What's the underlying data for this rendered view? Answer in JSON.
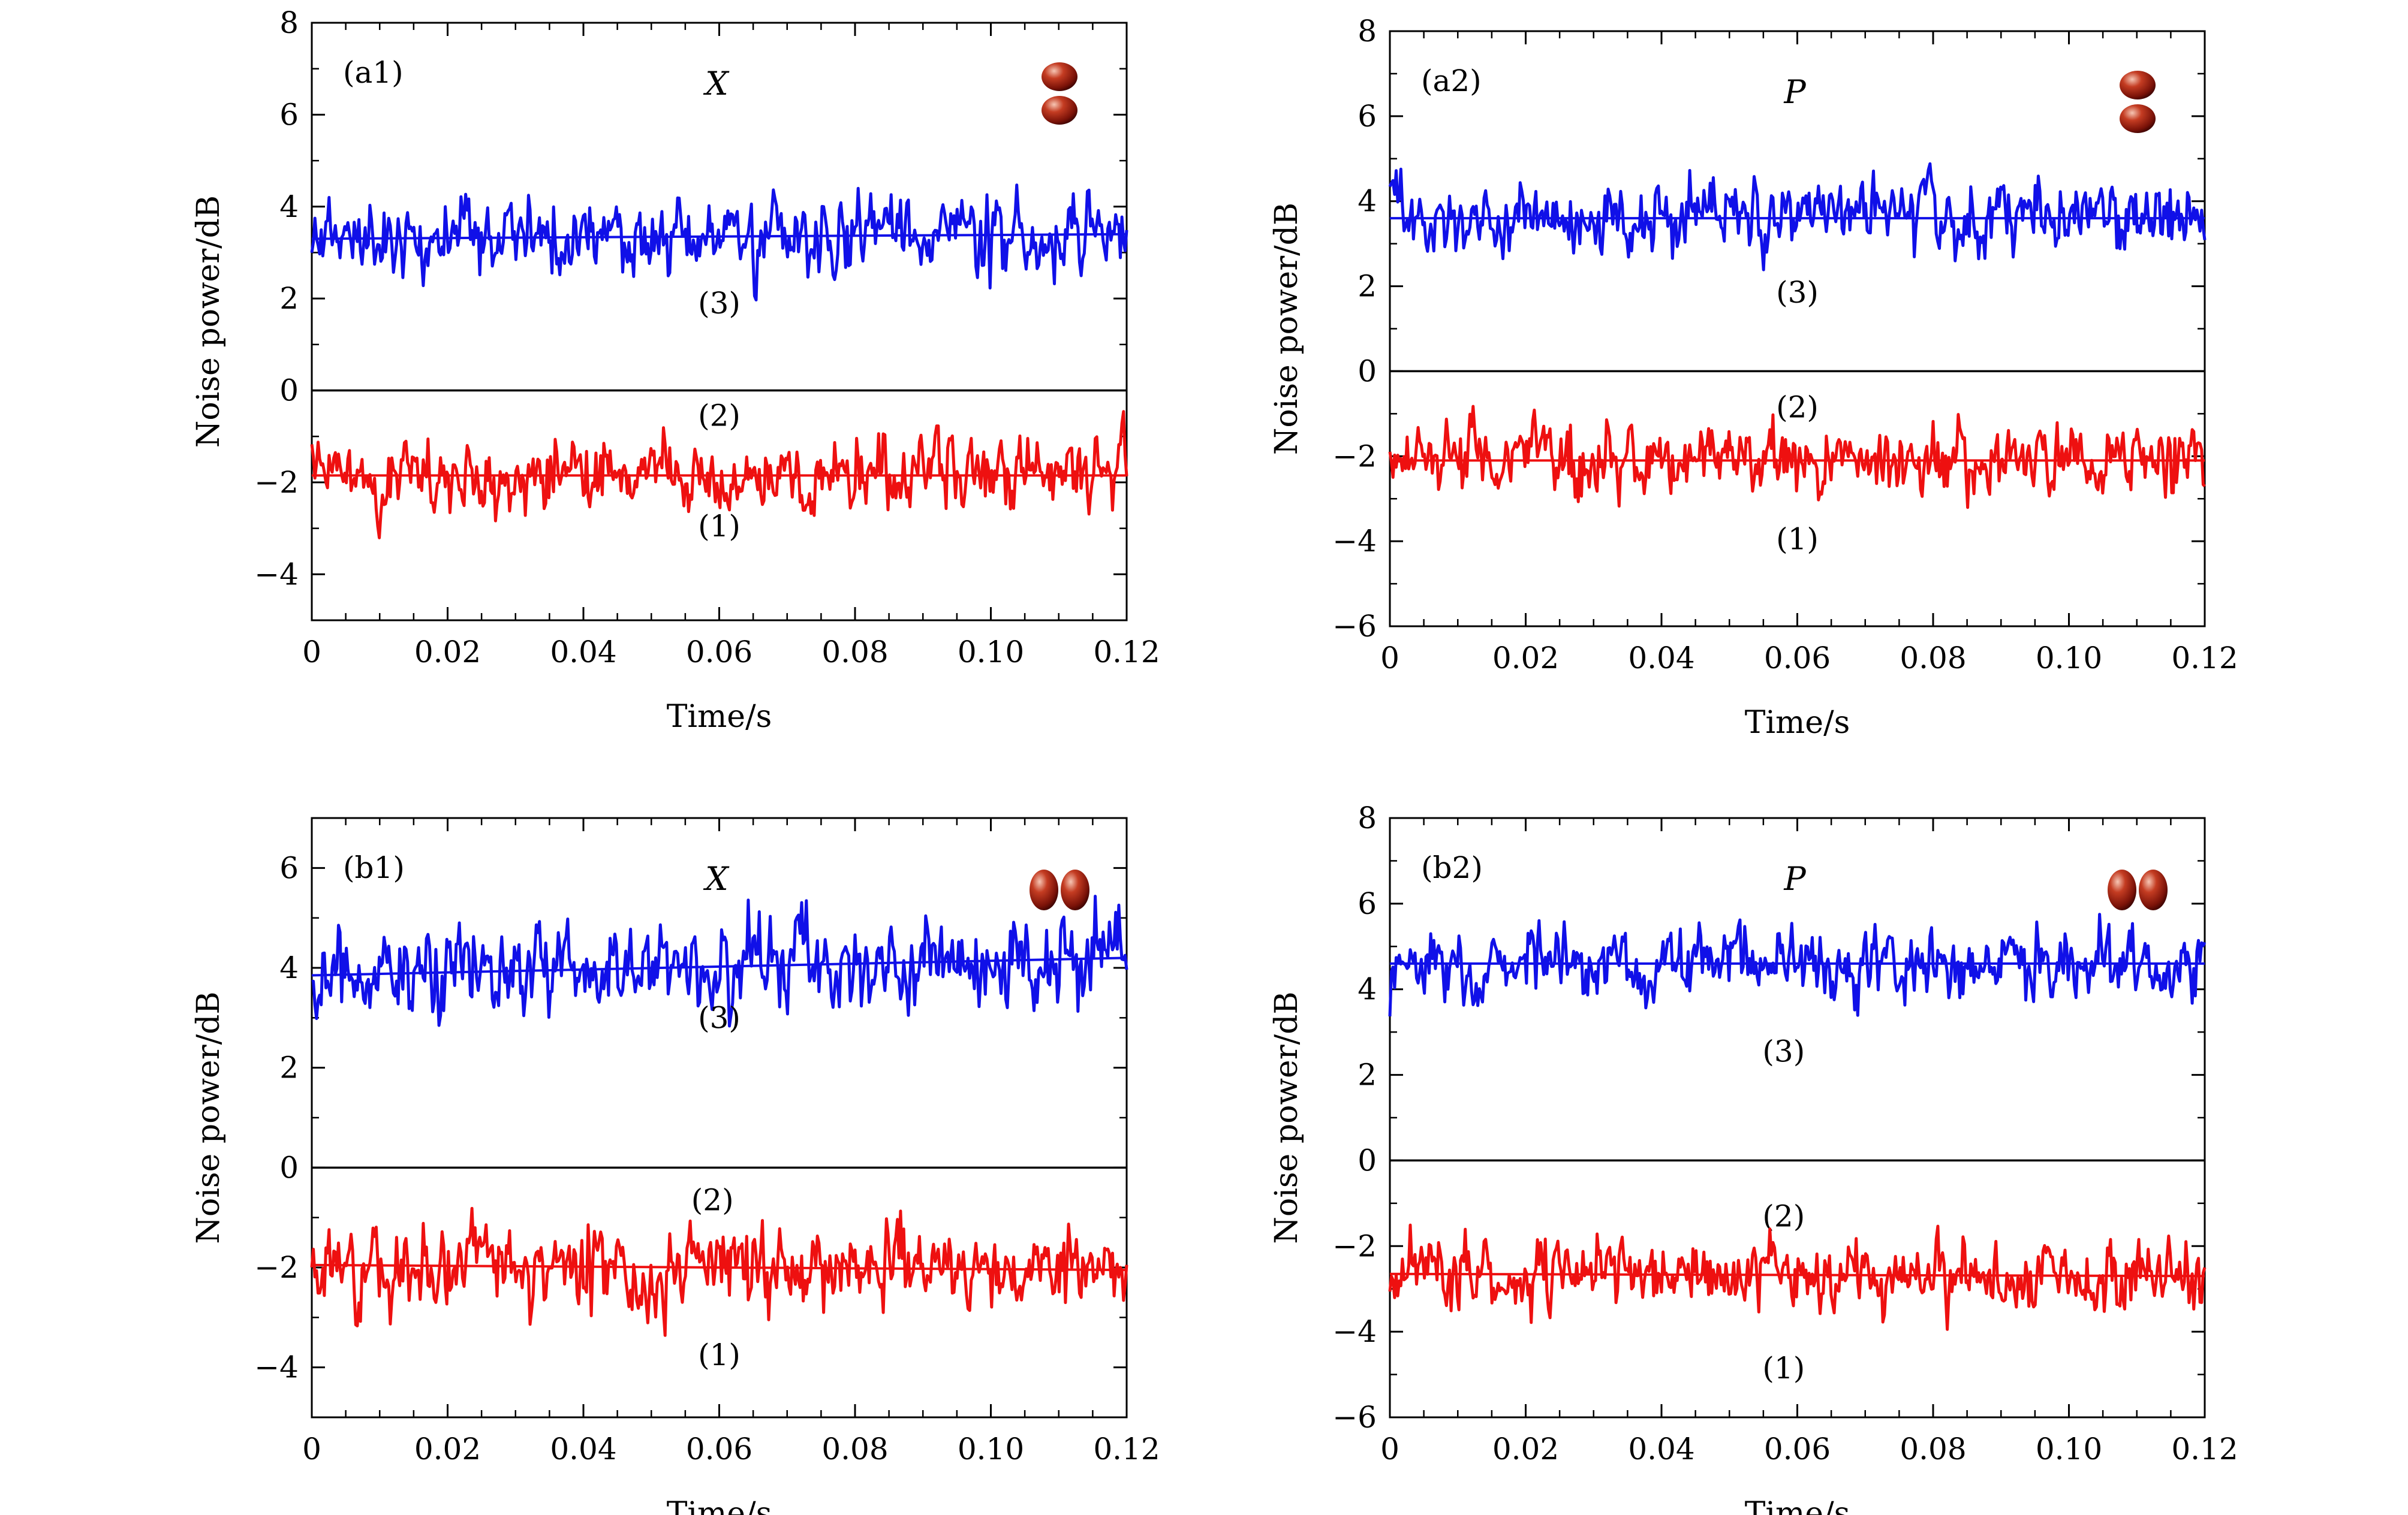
{
  "chart_data": [
    {
      "type": "line",
      "panel": "(a1)",
      "quadrature": "X",
      "xlabel": "Time/s",
      "ylabel": "Noise power/dB",
      "xlim": [
        0,
        0.12
      ],
      "ylim": [
        -5,
        8
      ],
      "xticks": [
        "0",
        "0.02",
        "0.04",
        "0.06",
        "0.08",
        "0.10",
        "0.12"
      ],
      "yticks": [
        "−4",
        "−2",
        "0",
        "2",
        "4",
        "6",
        "8"
      ],
      "icon": "vertical",
      "series": [
        {
          "label": "(3)",
          "color": "#1010e8",
          "mean_start": 3.3,
          "mean_end": 3.4,
          "amplitude": 0.45,
          "seed": 11
        },
        {
          "label": "(2)",
          "color": "#000000",
          "mean_start": 0,
          "mean_end": 0,
          "amplitude": 0,
          "seed": 0
        },
        {
          "label": "(1)",
          "color": "#ee1010",
          "mean_start": -1.85,
          "mean_end": -1.85,
          "amplitude": 0.45,
          "seed": 23
        }
      ]
    },
    {
      "type": "line",
      "panel": "(a2)",
      "quadrature": "P",
      "xlabel": "Time/s",
      "ylabel": "Noise power/dB",
      "xlim": [
        0,
        0.12
      ],
      "ylim": [
        -6,
        8
      ],
      "xticks": [
        "0",
        "0.02",
        "0.04",
        "0.06",
        "0.08",
        "0.10",
        "0.12"
      ],
      "yticks": [
        "−6",
        "−4",
        "−2",
        "0",
        "2",
        "4",
        "6",
        "8"
      ],
      "icon": "vertical",
      "series": [
        {
          "label": "(3)",
          "color": "#1010e8",
          "mean_start": 3.6,
          "mean_end": 3.6,
          "amplitude": 0.45,
          "seed": 37
        },
        {
          "label": "(2)",
          "color": "#000000",
          "mean_start": 0,
          "mean_end": 0,
          "amplitude": 0,
          "seed": 0
        },
        {
          "label": "(1)",
          "color": "#ee1010",
          "mean_start": -2.1,
          "mean_end": -2.1,
          "amplitude": 0.45,
          "seed": 41
        }
      ]
    },
    {
      "type": "line",
      "panel": "(b1)",
      "quadrature": "X",
      "xlabel": "Time/s",
      "ylabel": "Noise power/dB",
      "xlim": [
        0,
        0.12
      ],
      "ylim": [
        -5,
        7
      ],
      "xticks": [
        "0",
        "0.02",
        "0.04",
        "0.06",
        "0.08",
        "0.10",
        "0.12"
      ],
      "yticks": [
        "−4",
        "−2",
        "0",
        "2",
        "4",
        "6"
      ],
      "icon": "horizontal",
      "series": [
        {
          "label": "(3)",
          "color": "#1010e8",
          "mean_start": 3.85,
          "mean_end": 4.2,
          "amplitude": 0.5,
          "seed": 53
        },
        {
          "label": "(2)",
          "color": "#000000",
          "mean_start": 0,
          "mean_end": 0,
          "amplitude": 0,
          "seed": 0
        },
        {
          "label": "(1)",
          "color": "#ee1010",
          "mean_start": -1.95,
          "mean_end": -2.05,
          "amplitude": 0.45,
          "seed": 67
        }
      ]
    },
    {
      "type": "line",
      "panel": "(b2)",
      "quadrature": "P",
      "xlabel": "Time/s",
      "ylabel": "Noise power/dB",
      "xlim": [
        0,
        0.12
      ],
      "ylim": [
        -6,
        8
      ],
      "xticks": [
        "0",
        "0.02",
        "0.04",
        "0.06",
        "0.08",
        "0.10",
        "0.12"
      ],
      "yticks": [
        "−6",
        "−4",
        "−2",
        "0",
        "2",
        "4",
        "6",
        "8"
      ],
      "icon": "horizontal",
      "series": [
        {
          "label": "(3)",
          "color": "#1010e8",
          "mean_start": 4.6,
          "mean_end": 4.6,
          "amplitude": 0.45,
          "seed": 71
        },
        {
          "label": "(2)",
          "color": "#000000",
          "mean_start": 0,
          "mean_end": 0,
          "amplitude": 0,
          "seed": 0
        },
        {
          "label": "(1)",
          "color": "#ee1010",
          "mean_start": -2.65,
          "mean_end": -2.7,
          "amplitude": 0.45,
          "seed": 89
        }
      ]
    }
  ]
}
